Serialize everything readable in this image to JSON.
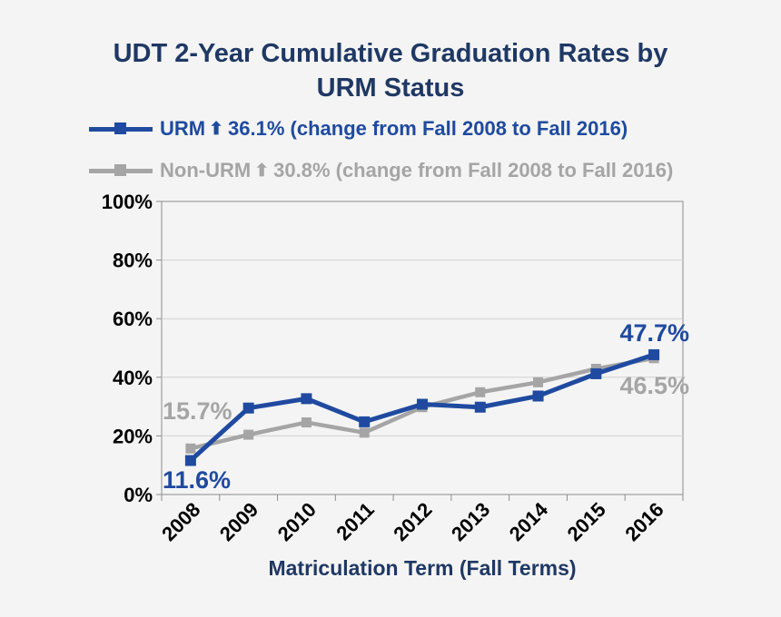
{
  "chart_data": {
    "type": "line",
    "title_line1": "UDT 2-Year Cumulative Graduation Rates by",
    "title_line2": "URM Status",
    "xlabel": "Matriculation Term (Fall Terms)",
    "ylabel": "",
    "categories": [
      "2008",
      "2009",
      "2010",
      "2011",
      "2012",
      "2013",
      "2014",
      "2015",
      "2016"
    ],
    "ylim": [
      0,
      100
    ],
    "yticks": [
      0,
      20,
      40,
      60,
      80,
      100
    ],
    "ytick_labels": [
      "0%",
      "20%",
      "40%",
      "60%",
      "80%",
      "100%"
    ],
    "grid": true,
    "series": [
      {
        "name": "URM",
        "legend_label": "URM",
        "legend_arrow": "⬆",
        "legend_text": "36.1% (change from Fall 2008 to Fall 2016)",
        "color": "#1f4aa0",
        "values": [
          11.6,
          29.5,
          32.7,
          24.8,
          30.8,
          29.8,
          33.6,
          41.2,
          47.7
        ],
        "start_label": "11.6%",
        "end_label": "47.7%"
      },
      {
        "name": "Non-URM",
        "legend_label": "Non-URM",
        "legend_arrow": "⬆",
        "legend_text": "30.8% (change from Fall 2008 to Fall 2016)",
        "color": "#a5a5a5",
        "values": [
          15.7,
          20.4,
          24.6,
          21.1,
          29.8,
          34.9,
          38.3,
          42.9,
          46.5
        ],
        "start_label": "15.7%",
        "end_label": "46.5%"
      }
    ]
  }
}
